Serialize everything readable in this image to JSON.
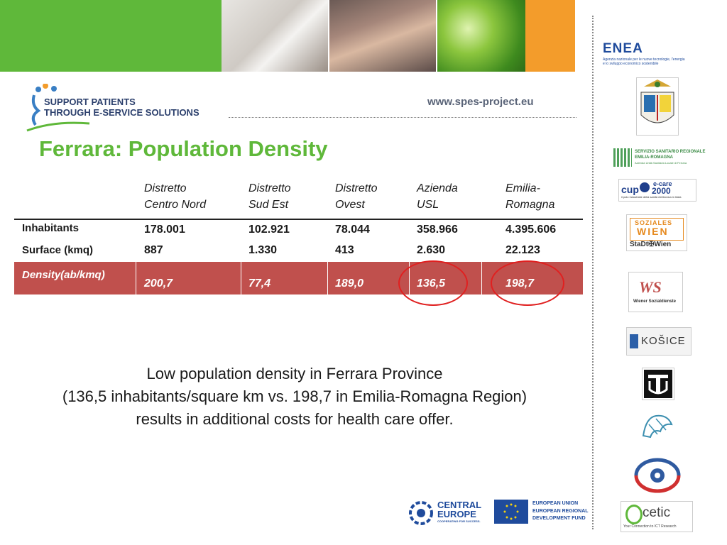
{
  "header": {
    "logo_line1": "SUPPORT PATIENTS",
    "logo_line2": "THROUGH E-SERVICE SOLUTIONS",
    "website": "www.spes-project.eu"
  },
  "slide": {
    "title": "Ferrara: Population Density"
  },
  "table": {
    "columns": [
      {
        "line1": "Distretto",
        "line2": "Centro Nord"
      },
      {
        "line1": "Distretto",
        "line2": "Sud Est"
      },
      {
        "line1": "Distretto",
        "line2": "Ovest"
      },
      {
        "line1": "Azienda",
        "line2": "USL"
      },
      {
        "line1": "Emilia-",
        "line2": "Romagna"
      }
    ],
    "rows": [
      {
        "label": "Inhabitants",
        "values": [
          "178.001",
          "102.921",
          "78.044",
          "358.966",
          "4.395.606"
        ]
      },
      {
        "label": "Surface (kmq)",
        "values": [
          "887",
          "1.330",
          "413",
          "2.630",
          "22.123"
        ]
      },
      {
        "label": "Density(ab/kmq)",
        "values": [
          "200,7",
          "77,4",
          "189,0",
          "136,5",
          "198,7"
        ]
      }
    ]
  },
  "caption": {
    "line1": "Low population density in Ferrara Province",
    "line2": "(136,5 inhabitants/square km vs. 198,7 in Emilia-Romagna Region)",
    "line3": "results in additional costs for health care offer."
  },
  "partners": {
    "enea_name": "ENEA",
    "enea_desc1": "Agenzia nazionale per le nuove tecnologie, l'energia",
    "enea_desc2": "e lo sviluppo economico sostenibile",
    "ssr1": "SERVIZIO SANITARIO REGIONALE",
    "ssr2": "EMILIA-ROMAGNA",
    "ssr3": "Azienda Unità Sanitaria Locale di Ferrara",
    "ecare_cup": "cup",
    "ecare_e": "e-care",
    "ecare_year": "2000",
    "ecare_desc": "il polo industriale della sanità elettronica in Italia",
    "fsw_top": "SOZIALES",
    "fsw_mid": "WIEN",
    "fsw_bot": "StaDt✠Wien",
    "ws_logo": "WS",
    "ws_desc": "Wiener Sozialdienste",
    "kosice": "KOŠICE",
    "cetic_name": "cetic",
    "cetic_desc": "Your Connection to ICT Research",
    "central_europe1": "CENTRAL",
    "central_europe2": "EUROPE",
    "central_europe3": "COOPERATING FOR SUCCESS.",
    "eu1": "EUROPEAN UNION",
    "eu2": "EUROPEAN REGIONAL",
    "eu3": "DEVELOPMENT FUND"
  },
  "colors": {
    "accent_green": "#5fb83a",
    "density_row": "#c0504d",
    "highlight_ring": "#e02020",
    "banner_orange": "#f39c2b"
  }
}
